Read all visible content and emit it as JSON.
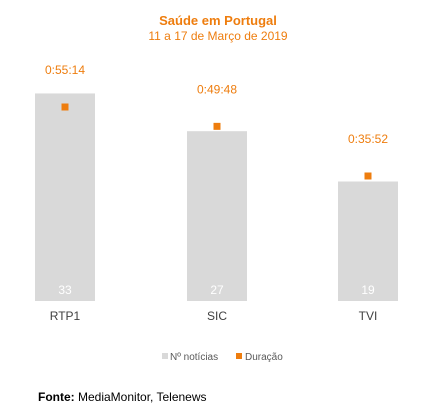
{
  "chart_data": {
    "type": "bar",
    "title": "Saúde em Portugal",
    "subtitle": "11 a 17 de Março de 2019",
    "categories": [
      "RTP1",
      "SIC",
      "TVI"
    ],
    "series": [
      {
        "name": "Nº notícias",
        "kind": "bar",
        "values": [
          33,
          27,
          19
        ],
        "color": "#d9d9d9"
      },
      {
        "name": "Duração",
        "kind": "marker",
        "values": [
          "0:55:14",
          "0:49:48",
          "0:35:52"
        ],
        "color": "#ee7d0e"
      }
    ],
    "ylim": [
      0,
      34.5
    ],
    "grid": false,
    "legend": "bottom"
  },
  "colors": {
    "accent": "#ee7d0e",
    "bar": "#d9d9d9",
    "count_text": "#ffffff",
    "axis_text": "#404040"
  },
  "source": {
    "label": "Fonte:",
    "text": "MediaMonitor, Telenews"
  }
}
